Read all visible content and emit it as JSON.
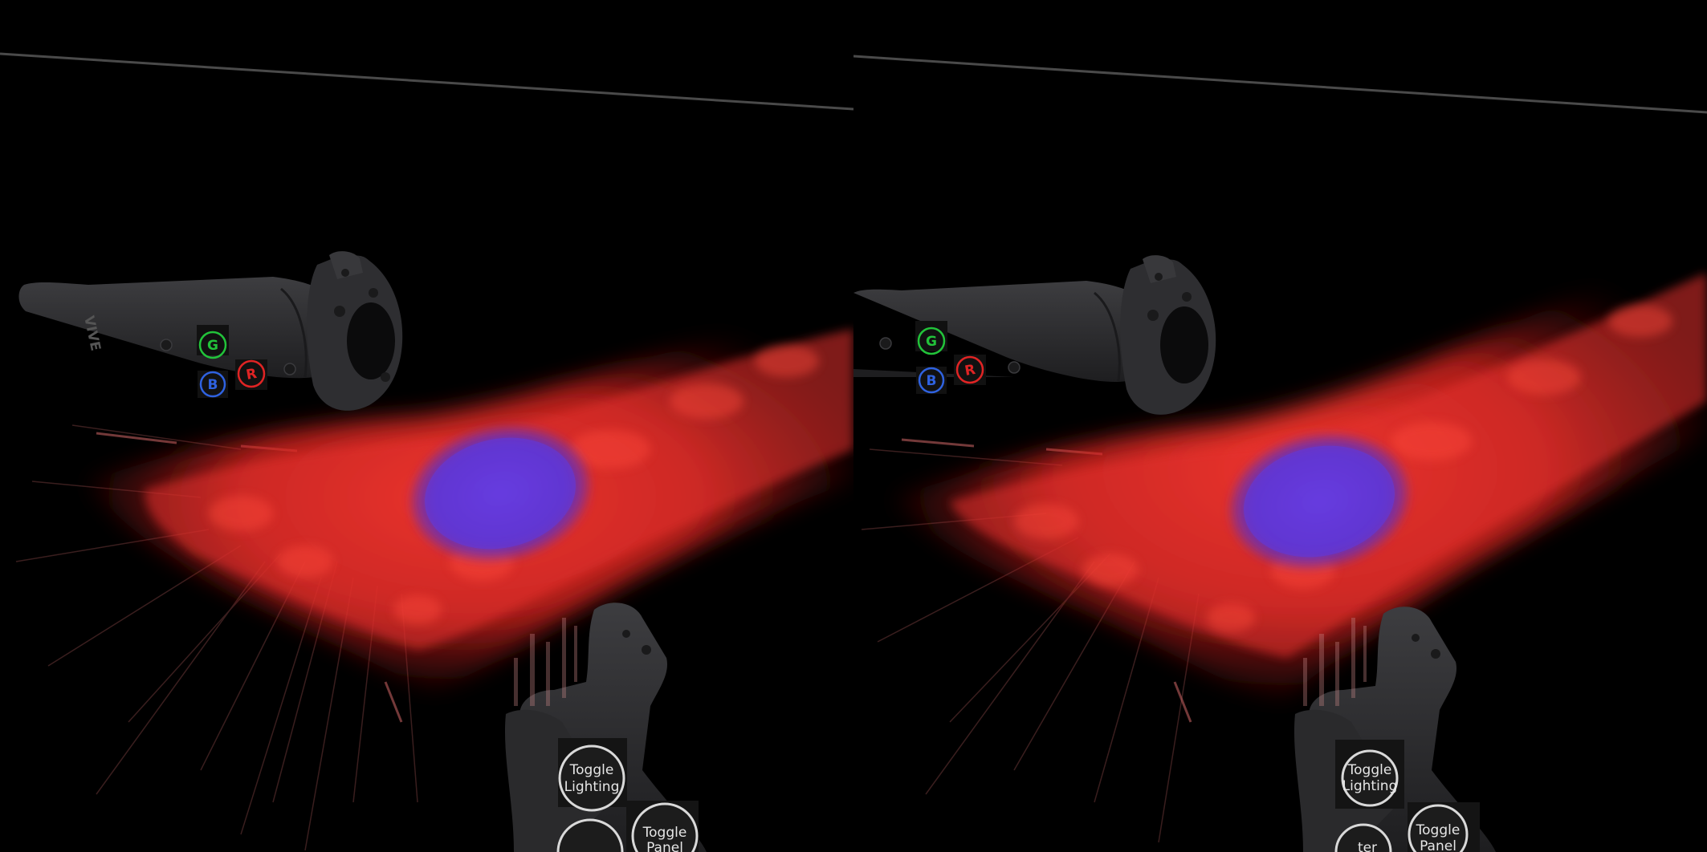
{
  "controller_brand": "VIVE",
  "color_buttons": [
    {
      "letter": "G",
      "color": "#22c33a"
    },
    {
      "letter": "R",
      "color": "#e02424"
    },
    {
      "letter": "B",
      "color": "#2f62e0"
    }
  ],
  "panel_buttons": {
    "toggle_lighting": [
      "Toggle",
      "Lighting"
    ],
    "toggle_panel": [
      "Toggle",
      "Panel"
    ],
    "partial": "ter"
  },
  "colors": {
    "background": "#000000",
    "cytoplasm": "#e8322e",
    "nucleus": "#5a3ad6",
    "controller_body": "#2b2b2d"
  }
}
